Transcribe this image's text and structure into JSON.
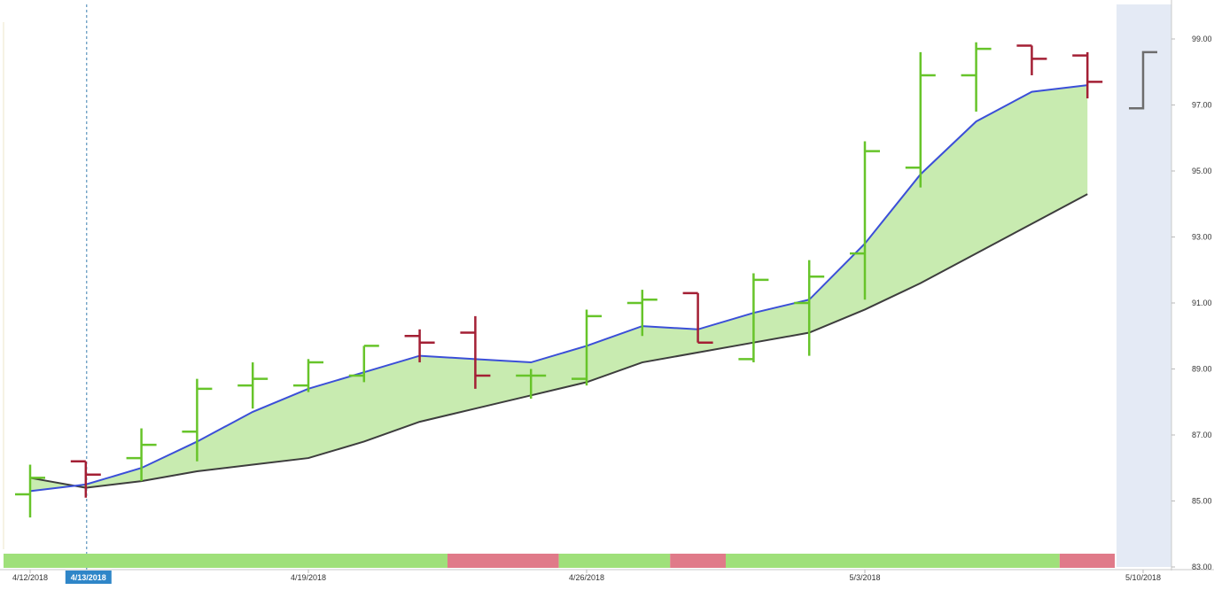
{
  "chart_data": {
    "type": "ohlc",
    "x_ticks": [
      "4/12/2018",
      "4/19/2018",
      "4/26/2018",
      "5/3/2018",
      "5/10/2018"
    ],
    "crosshair_date": "4/13/2018",
    "y_ticks": [
      "99.00",
      "97.00",
      "95.00",
      "93.00",
      "91.00",
      "89.00",
      "87.00",
      "85.00",
      "83.00"
    ],
    "ylim": [
      83,
      99.5
    ],
    "bars": [
      {
        "o": 85.2,
        "h": 86.1,
        "l": 84.5,
        "c": 85.7,
        "dir": "up"
      },
      {
        "o": 86.2,
        "h": 86.2,
        "l": 85.1,
        "c": 85.8,
        "dir": "down"
      },
      {
        "o": 86.3,
        "h": 87.2,
        "l": 85.6,
        "c": 86.7,
        "dir": "up"
      },
      {
        "o": 87.1,
        "h": 88.7,
        "l": 86.2,
        "c": 88.4,
        "dir": "up"
      },
      {
        "o": 88.5,
        "h": 89.2,
        "l": 87.8,
        "c": 88.7,
        "dir": "up"
      },
      {
        "o": 88.5,
        "h": 89.3,
        "l": 88.3,
        "c": 89.2,
        "dir": "up"
      },
      {
        "o": 88.8,
        "h": 89.7,
        "l": 88.6,
        "c": 89.7,
        "dir": "up"
      },
      {
        "o": 90.0,
        "h": 90.2,
        "l": 89.2,
        "c": 89.8,
        "dir": "down"
      },
      {
        "o": 90.1,
        "h": 90.6,
        "l": 88.4,
        "c": 88.8,
        "dir": "down"
      },
      {
        "o": 88.8,
        "h": 89.0,
        "l": 88.1,
        "c": 88.8,
        "dir": "up"
      },
      {
        "o": 88.7,
        "h": 90.8,
        "l": 88.5,
        "c": 90.6,
        "dir": "up"
      },
      {
        "o": 91.0,
        "h": 91.4,
        "l": 90.0,
        "c": 91.1,
        "dir": "up"
      },
      {
        "o": 91.3,
        "h": 91.3,
        "l": 89.8,
        "c": 89.8,
        "dir": "down"
      },
      {
        "o": 89.3,
        "h": 91.9,
        "l": 89.2,
        "c": 91.7,
        "dir": "up"
      },
      {
        "o": 91.0,
        "h": 92.3,
        "l": 89.4,
        "c": 91.8,
        "dir": "up"
      },
      {
        "o": 92.5,
        "h": 95.9,
        "l": 91.1,
        "c": 95.6,
        "dir": "up"
      },
      {
        "o": 95.1,
        "h": 98.6,
        "l": 94.5,
        "c": 97.9,
        "dir": "up"
      },
      {
        "o": 97.9,
        "h": 98.9,
        "l": 96.8,
        "c": 98.7,
        "dir": "up"
      },
      {
        "o": 98.8,
        "h": 98.8,
        "l": 97.9,
        "c": 98.4,
        "dir": "down"
      },
      {
        "o": 98.5,
        "h": 98.6,
        "l": 97.2,
        "c": 97.7,
        "dir": "down"
      }
    ],
    "upper_band": [
      85.3,
      85.5,
      86.0,
      86.8,
      87.7,
      88.4,
      88.9,
      89.4,
      89.3,
      89.2,
      89.7,
      90.3,
      90.2,
      90.7,
      91.1,
      92.8,
      94.9,
      96.5,
      97.4,
      97.6
    ],
    "lower_band": [
      85.7,
      85.4,
      85.6,
      85.9,
      86.1,
      86.3,
      86.8,
      87.4,
      87.8,
      88.2,
      88.6,
      89.2,
      89.5,
      89.8,
      90.1,
      90.8,
      91.6,
      92.5,
      93.4,
      94.3
    ],
    "trend_strip": [
      {
        "from": 0,
        "to": 8,
        "state": "up"
      },
      {
        "from": 8,
        "to": 10,
        "state": "down"
      },
      {
        "from": 10,
        "to": 12,
        "state": "up"
      },
      {
        "from": 12,
        "to": 13,
        "state": "down"
      },
      {
        "from": 13,
        "to": 19,
        "state": "up"
      },
      {
        "from": 19,
        "to": 20,
        "state": "down"
      }
    ],
    "projection_bar": {
      "o": 96.9,
      "c": 98.6
    },
    "colors": {
      "up": "#67c42a",
      "down": "#a31f34",
      "upper_line": "#3b4fd8",
      "lower_line": "#3d3d3d",
      "band_fill": "#c8ebb0",
      "strip_up": "#9fe07a",
      "strip_down": "#e07a89",
      "future_zone": "#e4eaf5",
      "date_highlight": "#2f86c8",
      "projection": "#6d6d6d"
    }
  }
}
